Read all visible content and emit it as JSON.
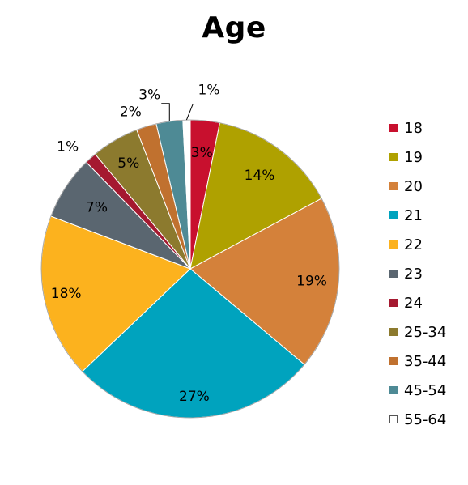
{
  "chart_data": {
    "type": "pie",
    "title": "Age",
    "categories": [
      "18",
      "19",
      "20",
      "21",
      "22",
      "23",
      "24",
      "25-34",
      "35-44",
      "45-54",
      "55-64"
    ],
    "values": [
      3.2,
      14.1,
      19.1,
      27.0,
      18.0,
      7.0,
      1.3,
      5.2,
      2.2,
      2.9,
      0.8
    ],
    "labels": [
      "3%",
      "14%",
      "19%",
      "27%",
      "18%",
      "7%",
      "1%",
      "5%",
      "2%",
      "3%",
      "1%"
    ],
    "colors": [
      "#C8102E",
      "#AFA100",
      "#D4813A",
      "#00A3BE",
      "#FCB21E",
      "#5A6670",
      "#A51930",
      "#8C7A2E",
      "#C0712F",
      "#4E8A95",
      "#FFFFFF"
    ],
    "start_angle_deg": 0,
    "direction": "clockwise",
    "legend_position": "right"
  }
}
